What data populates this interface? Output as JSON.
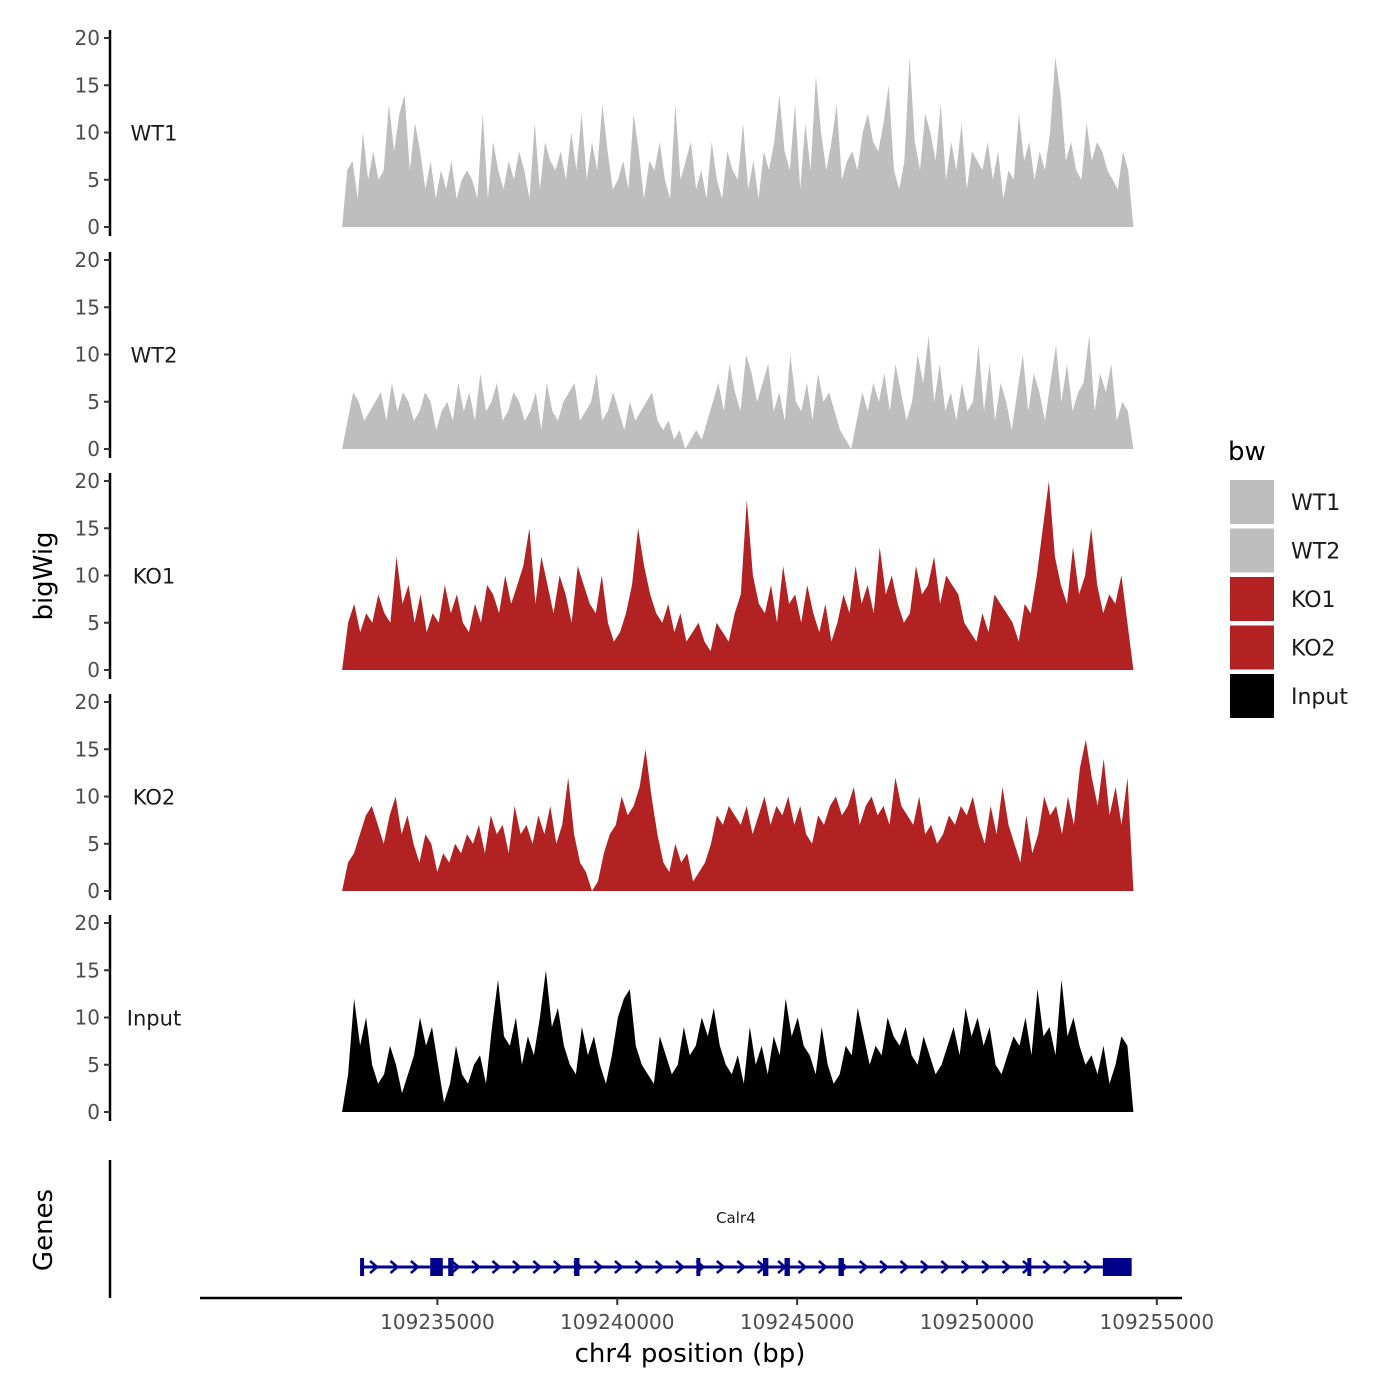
{
  "chart_data": {
    "type": "area",
    "title": "",
    "ylabel": "bigWig",
    "gene_track_label": "Genes",
    "xlabel": "chr4 position (bp)",
    "xlim": [
      109228400,
      109255700
    ],
    "x_ticks": [
      109235000,
      109240000,
      109245000,
      109250000,
      109255000
    ],
    "x_tick_labels": [
      "109235000",
      "109240000",
      "109245000",
      "109250000",
      "109255000"
    ],
    "data_range": [
      109232350,
      109254350
    ],
    "ylim": [
      0,
      20
    ],
    "y_ticks": [
      0,
      5,
      10,
      15,
      20
    ],
    "y_tick_labels": [
      "0",
      "5",
      "10",
      "15",
      "20"
    ],
    "legend": {
      "title": "bw",
      "position": "right",
      "entries": [
        {
          "label": "WT1",
          "color": "#bebebe"
        },
        {
          "label": "WT2",
          "color": "#bebebe"
        },
        {
          "label": "KO1",
          "color": "#b22222"
        },
        {
          "label": "KO2",
          "color": "#b22222"
        },
        {
          "label": "Input",
          "color": "#000000"
        }
      ]
    },
    "series": [
      {
        "name": "WT1",
        "color": "#bebebe",
        "values": [
          0,
          6,
          7,
          3,
          10,
          5,
          8,
          5,
          6,
          13,
          8,
          12,
          14,
          6,
          11,
          8,
          4,
          7,
          3,
          6,
          4,
          7,
          3,
          5,
          6,
          5,
          3,
          12,
          3,
          9,
          6,
          4,
          7,
          5,
          8,
          6,
          3,
          11,
          4,
          9,
          7,
          6,
          8,
          5,
          10,
          6,
          12,
          5,
          9,
          6,
          13,
          8,
          4,
          5,
          7,
          4,
          12,
          8,
          3,
          7,
          6,
          9,
          5,
          3,
          13,
          5,
          7,
          9,
          4,
          6,
          3,
          9,
          5,
          3,
          8,
          6,
          5,
          11,
          4,
          7,
          3,
          8,
          6,
          9,
          14,
          8,
          6,
          13,
          4,
          11,
          6,
          16,
          10,
          6,
          9,
          13,
          5,
          7,
          8,
          6,
          10,
          12,
          9,
          8,
          11,
          15,
          6,
          4,
          7,
          18,
          9,
          6,
          12,
          10,
          7,
          13,
          5,
          9,
          6,
          11,
          4,
          8,
          7,
          6,
          9,
          5,
          8,
          3,
          6,
          5,
          12,
          7,
          9,
          5,
          8,
          6,
          10,
          18,
          14,
          7,
          9,
          6,
          5,
          11,
          7,
          9,
          8,
          6,
          5,
          4,
          8,
          6,
          0
        ]
      },
      {
        "name": "WT2",
        "color": "#bebebe",
        "values": [
          0,
          3,
          6,
          5,
          3,
          4,
          5,
          6,
          3,
          7,
          4,
          6,
          5,
          3,
          4,
          6,
          5,
          2,
          4,
          5,
          3,
          7,
          4,
          6,
          3,
          8,
          4,
          5,
          7,
          3,
          4,
          6,
          5,
          3,
          4,
          6,
          2,
          7,
          4,
          3,
          5,
          6,
          7,
          3,
          4,
          5,
          8,
          3,
          4,
          6,
          4,
          2,
          5,
          3,
          4,
          5,
          6,
          3,
          2,
          3,
          1,
          2,
          0,
          1,
          2,
          1,
          3,
          5,
          7,
          4,
          9,
          6,
          4,
          10,
          8,
          5,
          7,
          9,
          4,
          6,
          3,
          10,
          5,
          4,
          7,
          3,
          8,
          5,
          6,
          4,
          2,
          1,
          0,
          3,
          6,
          4,
          7,
          5,
          8,
          4,
          9,
          6,
          3,
          5,
          10,
          7,
          12,
          5,
          9,
          4,
          6,
          3,
          7,
          4,
          5,
          11,
          4,
          9,
          3,
          7,
          5,
          2,
          6,
          10,
          4,
          8,
          6,
          3,
          7,
          11,
          5,
          9,
          4,
          6,
          7,
          12,
          4,
          8,
          6,
          9,
          3,
          5,
          4,
          0
        ]
      },
      {
        "name": "KO1",
        "color": "#b22222",
        "values": [
          0,
          5,
          7,
          4,
          6,
          5,
          8,
          6,
          5,
          12,
          7,
          9,
          5,
          8,
          4,
          6,
          5,
          9,
          6,
          8,
          5,
          4,
          7,
          5,
          9,
          8,
          6,
          10,
          7,
          9,
          11,
          15,
          7,
          12,
          9,
          6,
          10,
          8,
          5,
          11,
          9,
          7,
          6,
          10,
          5,
          3,
          4,
          6,
          9,
          15,
          11,
          8,
          6,
          5,
          7,
          4,
          6,
          3,
          4,
          5,
          3,
          2,
          5,
          4,
          3,
          6,
          8,
          18,
          10,
          7,
          6,
          9,
          5,
          11,
          7,
          8,
          5,
          9,
          6,
          4,
          7,
          3,
          5,
          8,
          6,
          11,
          7,
          9,
          6,
          13,
          8,
          10,
          7,
          5,
          6,
          11,
          8,
          9,
          12,
          7,
          10,
          9,
          8,
          5,
          4,
          3,
          6,
          4,
          8,
          7,
          6,
          5,
          3,
          7,
          6,
          10,
          15,
          20,
          12,
          9,
          7,
          13,
          8,
          10,
          15,
          9,
          6,
          8,
          7,
          10,
          5,
          0
        ]
      },
      {
        "name": "KO2",
        "color": "#b22222",
        "values": [
          0,
          3,
          4,
          6,
          8,
          9,
          7,
          5,
          8,
          10,
          6,
          8,
          5,
          3,
          6,
          5,
          2,
          4,
          3,
          5,
          4,
          6,
          5,
          7,
          4,
          8,
          6,
          7,
          4,
          9,
          6,
          7,
          5,
          8,
          6,
          9,
          5,
          7,
          12,
          6,
          3,
          2,
          0,
          1,
          4,
          6,
          7,
          10,
          8,
          9,
          11,
          15,
          10,
          6,
          3,
          2,
          5,
          3,
          4,
          1,
          2,
          3,
          5,
          8,
          7,
          9,
          8,
          7,
          9,
          6,
          8,
          10,
          7,
          9,
          8,
          10,
          7,
          9,
          6,
          5,
          8,
          7,
          9,
          10,
          8,
          9,
          11,
          7,
          9,
          10,
          8,
          9,
          7,
          12,
          9,
          8,
          7,
          10,
          6,
          7,
          5,
          6,
          8,
          7,
          9,
          8,
          10,
          7,
          5,
          9,
          6,
          11,
          7,
          5,
          3,
          8,
          4,
          6,
          10,
          8,
          9,
          6,
          10,
          7,
          13,
          16,
          12,
          9,
          14,
          8,
          11,
          7,
          12,
          0
        ]
      },
      {
        "name": "Input",
        "color": "#000000",
        "values": [
          0,
          4,
          12,
          7,
          10,
          5,
          3,
          4,
          7,
          5,
          2,
          4,
          6,
          10,
          7,
          9,
          5,
          1,
          3,
          7,
          4,
          3,
          5,
          6,
          3,
          9,
          14,
          8,
          7,
          10,
          5,
          8,
          6,
          10,
          15,
          9,
          11,
          7,
          5,
          4,
          9,
          6,
          8,
          5,
          3,
          6,
          10,
          12,
          13,
          7,
          5,
          4,
          3,
          8,
          6,
          4,
          5,
          9,
          6,
          7,
          10,
          8,
          11,
          7,
          5,
          4,
          6,
          3,
          9,
          5,
          7,
          4,
          8,
          6,
          12,
          8,
          10,
          7,
          6,
          4,
          9,
          5,
          3,
          4,
          7,
          6,
          11,
          8,
          5,
          7,
          6,
          10,
          8,
          7,
          9,
          6,
          5,
          8,
          6,
          4,
          5,
          7,
          9,
          6,
          11,
          8,
          10,
          7,
          9,
          5,
          4,
          6,
          8,
          7,
          10,
          6,
          13,
          8,
          9,
          6,
          14,
          8,
          10,
          7,
          5,
          6,
          4,
          7,
          3,
          5,
          8,
          7,
          0
        ]
      }
    ],
    "gene": {
      "name": "Calr4",
      "color": "#00008b",
      "start": 109232850,
      "end": 109254300,
      "strand": "+",
      "exons": [
        [
          109232850,
          109232950
        ],
        [
          109234800,
          109235150
        ],
        [
          109235300,
          109235450
        ],
        [
          109238800,
          109238950
        ],
        [
          109242200,
          109242300
        ],
        [
          109244050,
          109244200
        ],
        [
          109244650,
          109244800
        ],
        [
          109246150,
          109246300
        ],
        [
          109251400,
          109251500
        ],
        [
          109253500,
          109254300
        ]
      ]
    }
  }
}
